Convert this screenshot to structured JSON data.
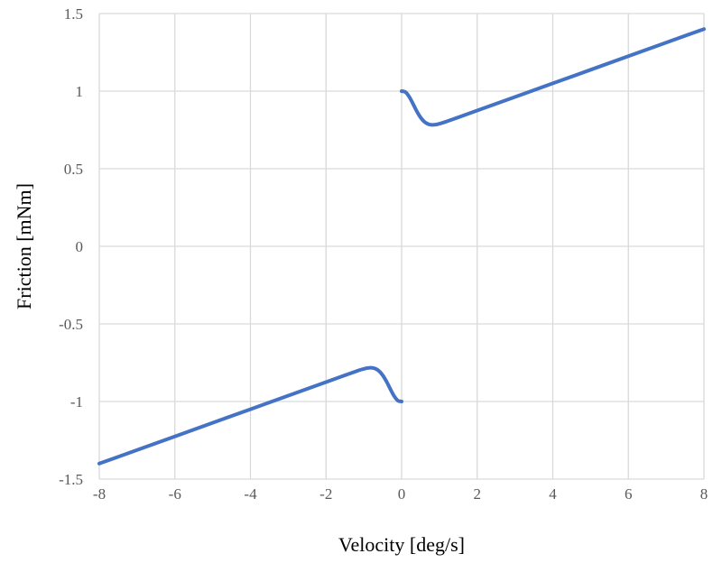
{
  "chart_data": {
    "type": "line",
    "title": "",
    "xlabel": "Velocity [deg/s]",
    "ylabel": "Friction [mNm]",
    "xlim": [
      -8,
      8
    ],
    "ylim": [
      -1.5,
      1.5
    ],
    "xticks": [
      -8,
      -6,
      -4,
      -2,
      0,
      2,
      4,
      6,
      8
    ],
    "yticks": [
      -1.5,
      -1,
      -0.5,
      0,
      0.5,
      1,
      1.5
    ],
    "xtick_labels": [
      "-8",
      "-6",
      "-4",
      "-2",
      "0",
      "2",
      "4",
      "6",
      "8"
    ],
    "ytick_labels": [
      "-1.5",
      "-1",
      "-0.5",
      "0",
      "0.5",
      "1",
      "1.5"
    ],
    "grid": true,
    "legend": "none",
    "color": "#4472C4",
    "series": [
      {
        "segments": [
          {
            "x": [
              -8,
              -6,
              -4,
              -2,
              -1.2,
              -1.0,
              -0.9,
              -0.8,
              -0.7,
              -0.6,
              -0.5,
              -0.4,
              -0.3,
              -0.2,
              -0.1,
              0
            ],
            "y": [
              -1.4,
              -1.225,
              -1.05,
              -0.875,
              -0.805,
              -0.79,
              -0.784,
              -0.783,
              -0.788,
              -0.803,
              -0.831,
              -0.871,
              -0.919,
              -0.964,
              -0.994,
              -1.0
            ]
          },
          {
            "x": [
              0,
              0.1,
              0.2,
              0.3,
              0.4,
              0.5,
              0.6,
              0.7,
              0.8,
              0.9,
              1.0,
              1.2,
              2,
              4,
              6,
              8
            ],
            "y": [
              1.0,
              0.994,
              0.964,
              0.919,
              0.871,
              0.831,
              0.803,
              0.788,
              0.783,
              0.784,
              0.79,
              0.805,
              0.875,
              1.05,
              1.225,
              1.4
            ]
          }
        ]
      }
    ]
  }
}
